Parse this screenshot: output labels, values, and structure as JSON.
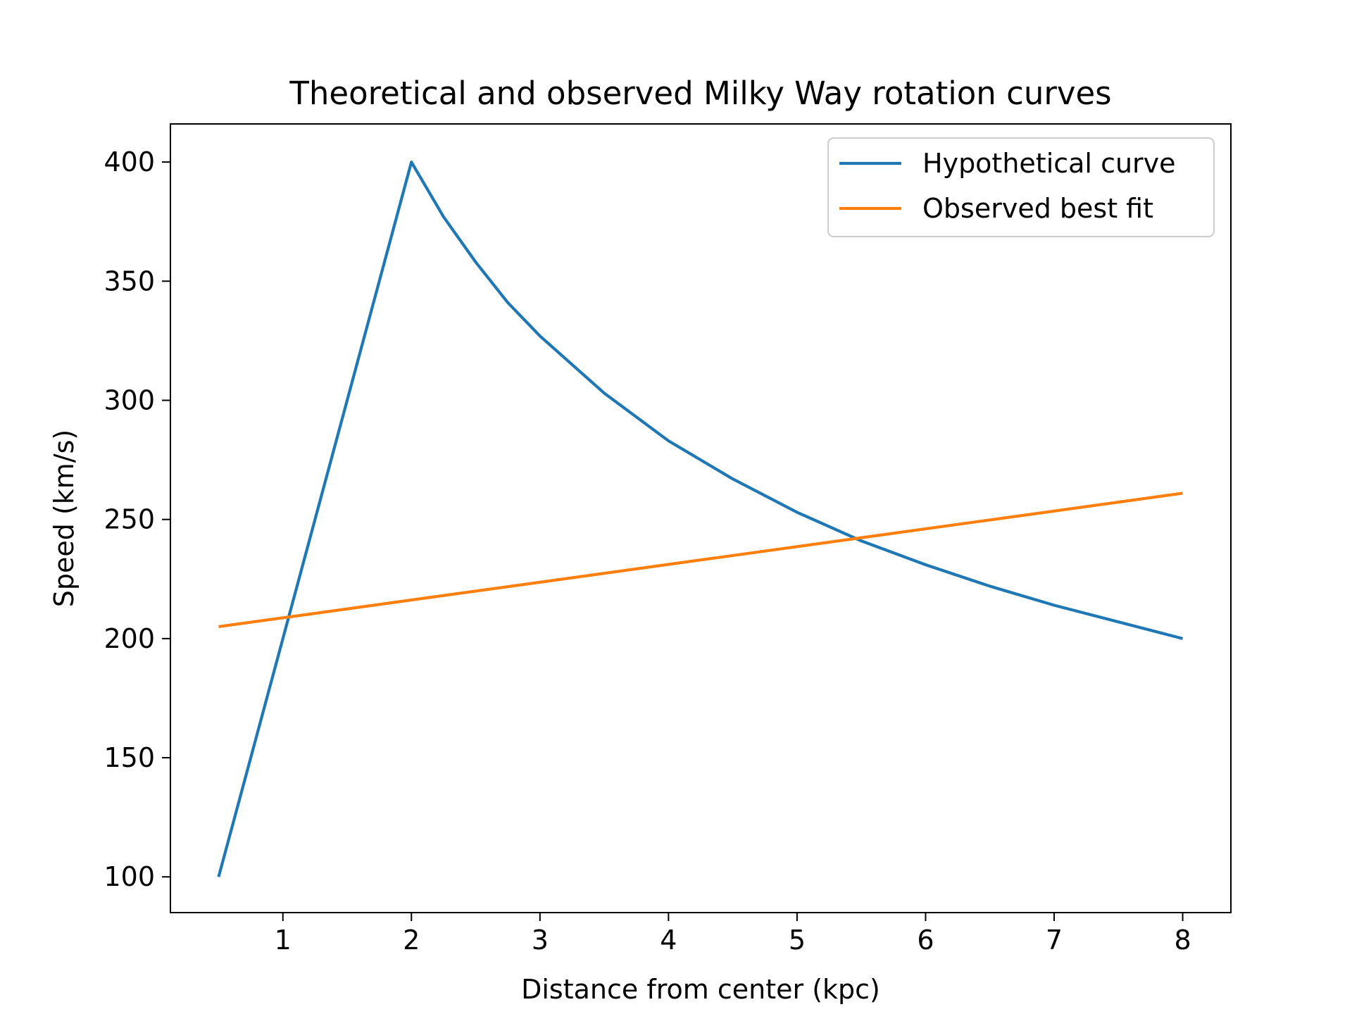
{
  "chart_data": {
    "type": "line",
    "title": "Theoretical and observed Milky Way rotation curves",
    "xlabel": "Distance from center (kpc)",
    "ylabel": "Speed (km/s)",
    "xlim": [
      0.125,
      8.375
    ],
    "ylim": [
      85,
      416
    ],
    "xticks": [
      1,
      2,
      3,
      4,
      5,
      6,
      7,
      8
    ],
    "yticks": [
      100,
      150,
      200,
      250,
      300,
      350,
      400
    ],
    "grid": false,
    "legend_position": "top-right",
    "series": [
      {
        "name": "Hypothetical curve",
        "color": "#1f77b4",
        "x": [
          0.5,
          1.0,
          1.5,
          2.0,
          2.25,
          2.5,
          2.75,
          3.0,
          3.5,
          4.0,
          4.5,
          5.0,
          5.5,
          6.0,
          6.5,
          7.0,
          7.5,
          8.0
        ],
        "y": [
          100,
          200,
          300,
          400,
          377,
          358,
          341,
          327,
          303,
          283,
          267,
          253,
          241,
          231,
          222,
          214,
          207,
          200
        ]
      },
      {
        "name": "Observed best fit",
        "color": "#ff7f0e",
        "x": [
          0.5,
          8.0
        ],
        "y": [
          205,
          261
        ]
      }
    ]
  }
}
